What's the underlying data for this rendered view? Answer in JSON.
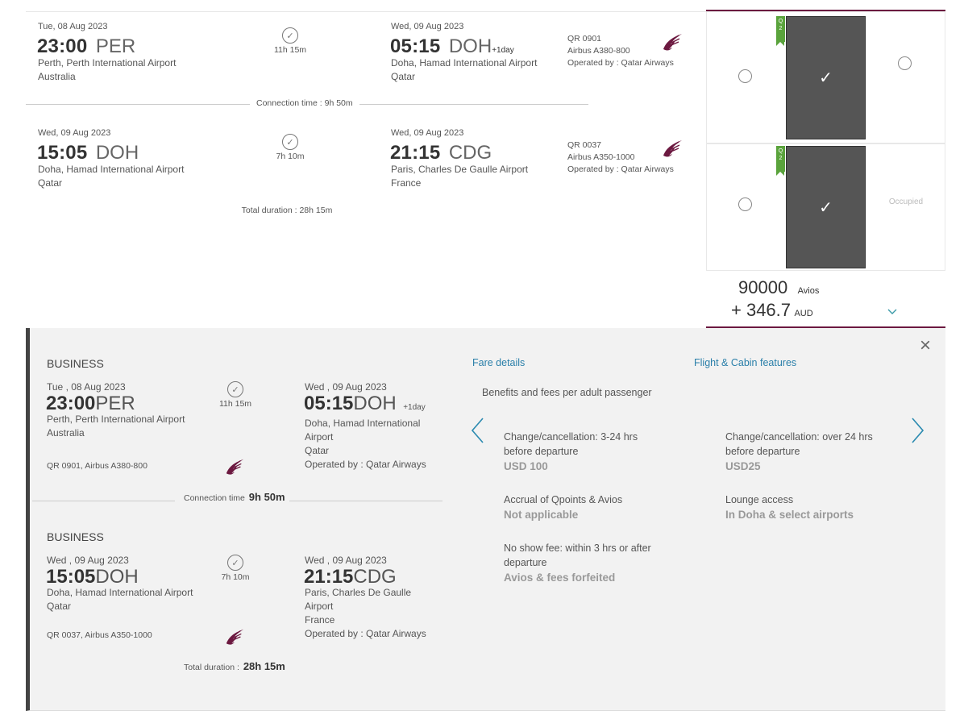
{
  "summary": {
    "seg1": {
      "dep_date": "Tue, 08 Aug 2023",
      "dep_time": "23:00",
      "dep_code": "PER",
      "dep_place1": "Perth, Perth International Airport",
      "dep_place2": "Australia",
      "duration": "11h 15m",
      "arr_date": "Wed, 09 Aug 2023",
      "arr_time": "05:15",
      "arr_code": "DOH",
      "arr_plus": "+1day",
      "arr_place1": "Doha, Hamad International Airport",
      "arr_place2": "Qatar",
      "flight": "QR 0901",
      "aircraft": "Airbus A380-800",
      "operated": "Operated by : Qatar Airways"
    },
    "connection": "Connection time : 9h 50m",
    "seg2": {
      "dep_date": "Wed, 09 Aug 2023",
      "dep_time": "15:05",
      "dep_code": "DOH",
      "dep_place1": "Doha, Hamad International Airport",
      "dep_place2": "Qatar",
      "duration": "7h 10m",
      "arr_date": "Wed, 09 Aug 2023",
      "arr_time": "21:15",
      "arr_code": "CDG",
      "arr_place1": "Paris, Charles De Gaulle Airport",
      "arr_place2": "France",
      "flight": "QR 0037",
      "aircraft": "Airbus A350-1000",
      "operated": "Operated by : Qatar Airways"
    },
    "total": "Total duration : 28h 15m"
  },
  "fare_panel": {
    "tag": "Q 2",
    "check": "✓",
    "occupied": "Occupied",
    "avios": "90000",
    "avios_unit": "Avios",
    "plus_amount": "+ 346.7",
    "currency": "AUD",
    "chevron": "chevron-down-icon"
  },
  "detail": {
    "close": "×",
    "seg1": {
      "cabin": "BUSINESS",
      "dep_date": "Tue , 08 Aug 2023",
      "dep_time": "23:00",
      "dep_code": "PER",
      "dep_place1": "Perth, Perth International Airport",
      "dep_place2": "Australia",
      "duration": "11h 15m",
      "arr_date": "Wed , 09 Aug 2023",
      "arr_time": "05:15",
      "arr_code": "DOH",
      "arr_plus": "+1day",
      "arr_place1": "Doha, Hamad International",
      "arr_place2": "Airport",
      "arr_place3": "Qatar",
      "operated": "Operated by : Qatar Airways",
      "flight": "QR 0901, Airbus A380-800"
    },
    "connection_label": "Connection time",
    "connection_value": "9h 50m",
    "seg2": {
      "cabin": "BUSINESS",
      "dep_date": "Wed , 09 Aug 2023",
      "dep_time": "15:05",
      "dep_code": "DOH",
      "dep_place1": "Doha, Hamad International Airport",
      "dep_place2": "Qatar",
      "duration": "7h 10m",
      "arr_date": "Wed , 09 Aug 2023",
      "arr_time": "21:15",
      "arr_code": "CDG",
      "arr_place1": "Paris, Charles De Gaulle",
      "arr_place2": "Airport",
      "arr_place3": "France",
      "operated": "Operated by : Qatar Airways",
      "flight": "QR 0037, Airbus A350-1000"
    },
    "total_label": "Total duration :",
    "total_value": "28h 15m",
    "tabs": {
      "fare": "Fare details",
      "features": "Flight & Cabin features"
    },
    "benefits_title": "Benefits and fees per adult passenger",
    "benefits": {
      "change_short_1": "Change/cancellation: 3-24 hrs",
      "change_short_2": "before departure",
      "change_short_value": "USD 100",
      "change_long_1": "Change/cancellation: over 24 hrs",
      "change_long_2": "before departure",
      "change_long_value": "USD25",
      "accrual": "Accrual of Qpoints & Avios",
      "accrual_value": "Not applicable",
      "lounge": "Lounge access",
      "lounge_value": "In Doha & select airports",
      "noshow_1": "No show fee: within 3 hrs or after",
      "noshow_2": "departure",
      "noshow_value": "Avios & fees forfeited"
    }
  }
}
